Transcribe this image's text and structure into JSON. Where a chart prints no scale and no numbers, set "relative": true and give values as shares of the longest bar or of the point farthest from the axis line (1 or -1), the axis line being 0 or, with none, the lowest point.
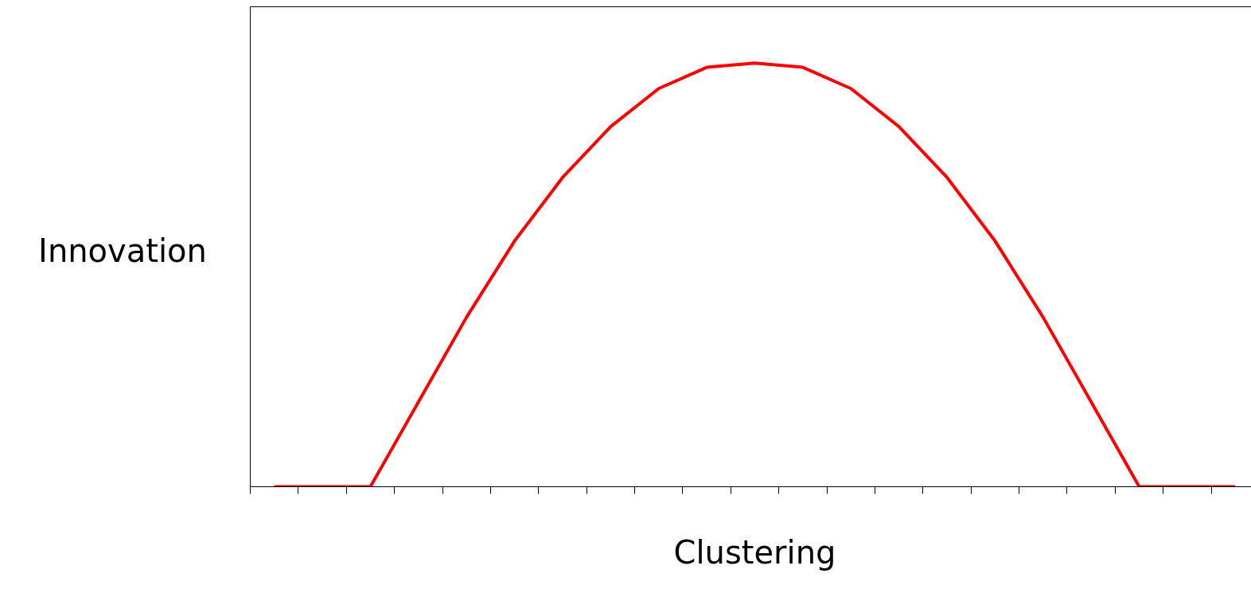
{
  "chart_data": {
    "type": "line",
    "relative": true,
    "xlabel": "Clustering",
    "ylabel": "Innovation",
    "categories": [
      null,
      null,
      null,
      null,
      null,
      null,
      null,
      null,
      null,
      null,
      null,
      null,
      null,
      null,
      null,
      null,
      null,
      null,
      null,
      null,
      null
    ],
    "series": [
      {
        "color": "#ff0000",
        "values": [
          0,
          0,
          0,
          0.2,
          0.4,
          0.58,
          0.73,
          0.85,
          0.94,
          0.99,
          1,
          0.99,
          0.94,
          0.85,
          0.73,
          0.58,
          0.4,
          0.2,
          0,
          0,
          0
        ]
      }
    ],
    "grid": false,
    "marker": "none",
    "line_style": "solid"
  }
}
